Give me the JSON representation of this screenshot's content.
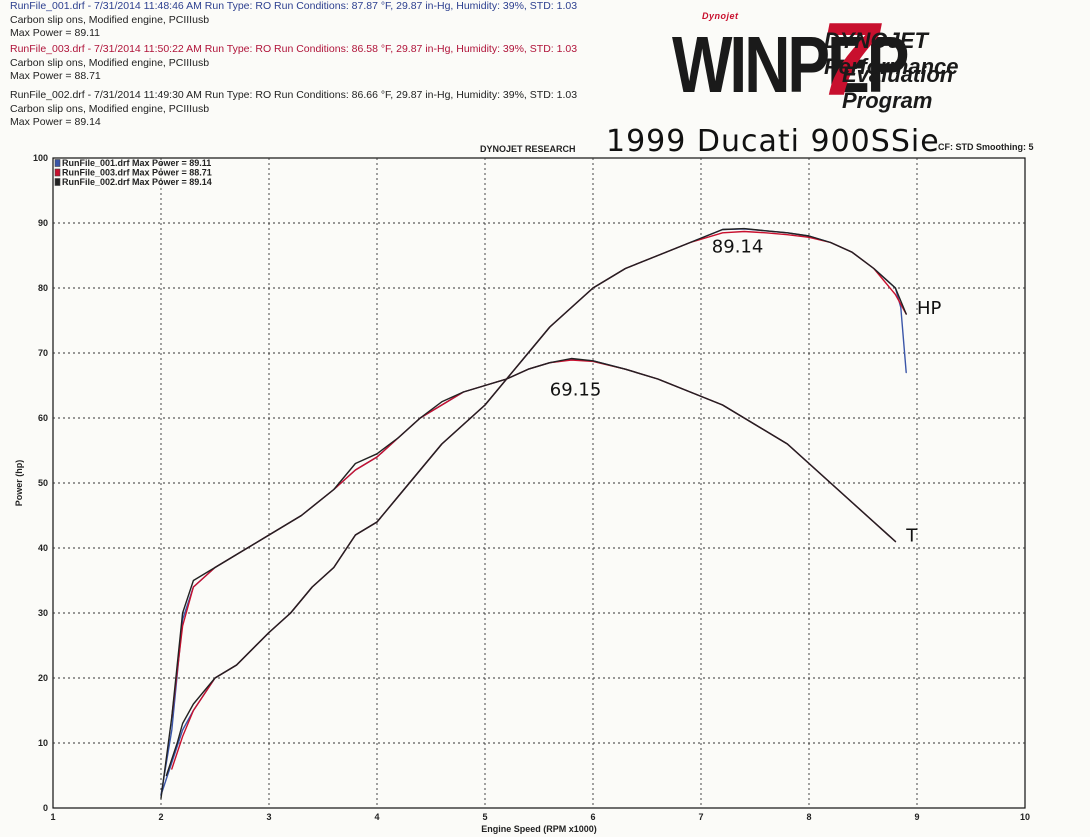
{
  "runs": [
    {
      "header": "RunFile_001.drf - 7/31/2014 11:48:46 AM  Run Type: RO  Run Conditions: 87.87 °F, 29.87 in-Hg,  Humidity: 39%, STD: 1.03",
      "desc": "Carbon slip ons, Modified engine, PCIIIusb",
      "maxpower": "Max Power = 89.11"
    },
    {
      "header": "RunFile_003.drf - 7/31/2014 11:50:22 AM  Run Type: RO  Run Conditions: 86.58 °F, 29.87 in-Hg,  Humidity: 39%, STD: 1.03",
      "desc": "Carbon slip ons, Modified engine, PCIIIusb",
      "maxpower": "Max Power = 88.71"
    },
    {
      "header": "RunFile_002.drf - 7/31/2014 11:49:30 AM  Run Type: RO  Run Conditions: 86.66 °F, 29.87 in-Hg,  Humidity: 39%, STD: 1.03",
      "desc": "Carbon slip ons, Modified engine, PCIIIusb",
      "maxpower": "Max Power = 89.14"
    }
  ],
  "logo": {
    "small": "Dynojet",
    "big": "WINPEP",
    "seven": "7",
    "line1": "DYNOJET Performance",
    "line2": "Evaluation Program"
  },
  "research": "DYNOJET RESEARCH",
  "handwritten_title": "1999 Ducati 900SSie",
  "cf_smoothing": "CF: STD  Smoothing: 5",
  "colors": {
    "run001": "#3a55a8",
    "run003": "#c8102e",
    "run002": "#222222"
  },
  "chart_data": {
    "type": "line",
    "xlabel": "Engine Speed (RPM x1000)",
    "ylabel": "Power (hp)",
    "xlim": [
      1,
      10
    ],
    "ylim": [
      0,
      100
    ],
    "xticks": [
      "1",
      "2",
      "3",
      "4",
      "5",
      "6",
      "7",
      "8",
      "9",
      "10"
    ],
    "yticks": [
      "0",
      "10",
      "20",
      "30",
      "40",
      "50",
      "60",
      "70",
      "80",
      "90",
      "100"
    ],
    "grid": true,
    "legend": "top-left",
    "legend_entries": [
      "RunFile_001.drf Max Power = 89.11",
      "RunFile_003.drf Max Power = 88.71",
      "RunFile_002.drf Max Power = 89.14"
    ],
    "series": [
      {
        "name": "RunFile_001.drf Max Power = 89.11",
        "quantity": "HP",
        "color": "#3a55a8",
        "x": [
          2.0,
          2.1,
          2.2,
          2.3,
          2.5,
          2.7,
          3.0,
          3.2,
          3.4,
          3.6,
          3.8,
          4.0,
          4.2,
          4.4,
          4.6,
          4.8,
          5.0,
          5.2,
          5.4,
          5.6,
          5.8,
          6.0,
          6.3,
          6.6,
          6.9,
          7.2,
          7.4,
          7.6,
          7.8,
          8.0,
          8.2,
          8.4,
          8.6,
          8.8,
          8.85,
          8.9
        ],
        "y": [
          2,
          7,
          12,
          15,
          20,
          22,
          27,
          30,
          34,
          37,
          42,
          44,
          48,
          52,
          56,
          59,
          62,
          66,
          70,
          74,
          77,
          80,
          83,
          85,
          87,
          89,
          89.1,
          88.8,
          88.5,
          88,
          87,
          85.5,
          83,
          80,
          77,
          67
        ]
      },
      {
        "name": "RunFile_003.drf Max Power = 88.71",
        "quantity": "HP",
        "color": "#c8102e",
        "x": [
          2.1,
          2.2,
          2.3,
          2.5,
          2.7,
          3.0,
          3.2,
          3.4,
          3.6,
          3.8,
          4.0,
          4.2,
          4.4,
          4.6,
          4.8,
          5.0,
          5.2,
          5.4,
          5.6,
          5.8,
          6.0,
          6.3,
          6.6,
          6.9,
          7.2,
          7.4,
          7.6,
          7.8,
          8.0,
          8.2,
          8.4,
          8.6,
          8.8,
          8.9
        ],
        "y": [
          6,
          11,
          15,
          20,
          22,
          27,
          30,
          34,
          37,
          42,
          44,
          48,
          52,
          56,
          59,
          62,
          66,
          70,
          74,
          77,
          80,
          83,
          85,
          87,
          88.5,
          88.7,
          88.5,
          88.2,
          87.8,
          87,
          85.5,
          83,
          79,
          76
        ]
      },
      {
        "name": "RunFile_002.drf Max Power = 89.14",
        "quantity": "HP",
        "color": "#222222",
        "x": [
          2.05,
          2.15,
          2.2,
          2.3,
          2.5,
          2.7,
          3.0,
          3.2,
          3.4,
          3.6,
          3.8,
          4.0,
          4.2,
          4.4,
          4.6,
          4.8,
          5.0,
          5.2,
          5.4,
          5.6,
          5.8,
          6.0,
          6.3,
          6.6,
          6.9,
          7.2,
          7.4,
          7.6,
          7.8,
          8.0,
          8.2,
          8.4,
          8.6,
          8.8,
          8.85,
          8.9
        ],
        "y": [
          5,
          10,
          13,
          16,
          20,
          22,
          27,
          30,
          34,
          37,
          42,
          44,
          48,
          52,
          56,
          59,
          62,
          66,
          70,
          74,
          77,
          80,
          83,
          85,
          87,
          89,
          89.14,
          88.8,
          88.5,
          88,
          87,
          85.5,
          83,
          80,
          78,
          76
        ]
      },
      {
        "name": "RunFile_001.drf Torque",
        "quantity": "Torque",
        "color": "#3a55a8",
        "x": [
          2.0,
          2.1,
          2.2,
          2.3,
          2.5,
          2.7,
          3.0,
          3.3,
          3.6,
          3.8,
          4.0,
          4.2,
          4.4,
          4.6,
          4.8,
          5.0,
          5.2,
          5.4,
          5.6,
          5.8,
          6.0,
          6.3,
          6.6,
          6.9,
          7.2,
          7.5,
          7.8,
          8.0,
          8.2,
          8.4,
          8.6,
          8.8
        ],
        "y": [
          2,
          12,
          29,
          34,
          37,
          39,
          42,
          45,
          49,
          52,
          54,
          57,
          60,
          62,
          64,
          65,
          66,
          67.5,
          68.5,
          69,
          68.8,
          67.5,
          66,
          64,
          62,
          59,
          56,
          53,
          50,
          47,
          44,
          41
        ]
      },
      {
        "name": "RunFile_003.drf Torque",
        "quantity": "Torque",
        "color": "#c8102e",
        "x": [
          2.1,
          2.2,
          2.3,
          2.5,
          2.7,
          3.0,
          3.3,
          3.6,
          3.8,
          4.0,
          4.2,
          4.4,
          4.6,
          4.8,
          5.0,
          5.2,
          5.4,
          5.6,
          5.8,
          6.0,
          6.3,
          6.6,
          6.9,
          7.2,
          7.5,
          7.8,
          8.0,
          8.2,
          8.4,
          8.6,
          8.8
        ],
        "y": [
          14,
          28,
          34,
          37,
          39,
          42,
          45,
          49,
          52,
          54,
          57,
          60,
          62,
          64,
          65,
          66,
          67.5,
          68.5,
          68.9,
          68.7,
          67.5,
          66,
          64,
          62,
          59,
          56,
          53,
          50,
          47,
          44,
          41
        ]
      },
      {
        "name": "RunFile_002.drf Torque",
        "quantity": "Torque",
        "color": "#222222",
        "x": [
          2.0,
          2.1,
          2.2,
          2.3,
          2.5,
          2.7,
          3.0,
          3.3,
          3.6,
          3.8,
          4.0,
          4.2,
          4.4,
          4.6,
          4.8,
          5.0,
          5.2,
          5.4,
          5.6,
          5.8,
          6.0,
          6.3,
          6.6,
          6.9,
          7.2,
          7.5,
          7.8,
          8.0,
          8.2,
          8.4,
          8.6,
          8.8
        ],
        "y": [
          1.5,
          14,
          30,
          35,
          37,
          39,
          42,
          45,
          49,
          53,
          54.5,
          57,
          60,
          62.5,
          64,
          65,
          66,
          67.5,
          68.5,
          69.15,
          68.8,
          67.5,
          66,
          64,
          62,
          59,
          56,
          53,
          50,
          47,
          44,
          41
        ]
      }
    ],
    "annotations": [
      {
        "text": "89.14",
        "x": 7.1,
        "y": 85.5
      },
      {
        "text": "69.15",
        "x": 5.6,
        "y": 63.5
      },
      {
        "text": "HP",
        "x": 9.0,
        "y": 76
      },
      {
        "text": "T",
        "x": 8.9,
        "y": 41
      }
    ]
  }
}
